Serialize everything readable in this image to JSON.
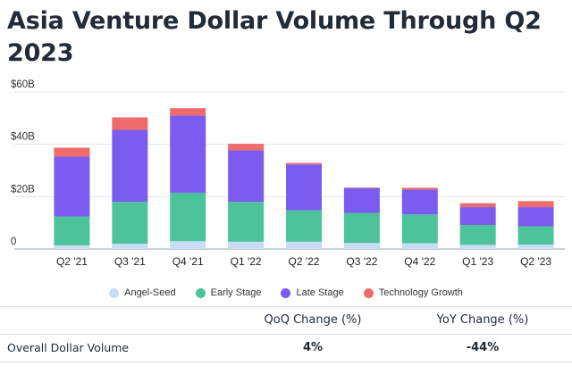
{
  "title": "Asia Venture Dollar Volume Through Q2 2023",
  "colors": {
    "angel_seed": "#c9dcf6",
    "early_stage": "#4cc39a",
    "late_stage": "#7b5cf0",
    "technology_growth": "#ef6b6b"
  },
  "chart_data": {
    "type": "bar",
    "stacked": true,
    "title": "Asia Venture Dollar Volume Through Q2 2023",
    "xlabel": "",
    "ylabel": "",
    "ylim": [
      0,
      60
    ],
    "yticks": [
      0,
      20,
      40,
      60
    ],
    "ytick_labels": [
      "0",
      "$20B",
      "$40B",
      "$60B"
    ],
    "grid": true,
    "legend": "bottom",
    "categories": [
      "Q2 '21",
      "Q3 '21",
      "Q4 '21",
      "Q1 '22",
      "Q2 '22",
      "Q3 '22",
      "Q4 '22",
      "Q1 '23",
      "Q2 '23"
    ],
    "series": [
      {
        "name": "Angel-Seed",
        "values": [
          1.4,
          2.0,
          3.0,
          2.8,
          2.8,
          2.3,
          2.2,
          1.6,
          1.7
        ]
      },
      {
        "name": "Early Stage",
        "values": [
          11.0,
          16.0,
          18.5,
          15.2,
          12.0,
          11.5,
          11.0,
          7.6,
          7.0
        ]
      },
      {
        "name": "Late Stage",
        "values": [
          22.9,
          27.5,
          29.5,
          19.7,
          17.5,
          9.5,
          9.5,
          6.8,
          7.3
        ]
      },
      {
        "name": "Technology Growth",
        "values": [
          3.4,
          4.8,
          2.8,
          2.5,
          0.6,
          0.2,
          0.7,
          1.5,
          2.3
        ]
      }
    ]
  },
  "table": {
    "headers": [
      "",
      "QoQ Change (%)",
      "YoY Change (%)"
    ],
    "rows": [
      {
        "label": "Overall Dollar Volume",
        "qoq": "4%",
        "yoy": "-44%"
      }
    ]
  }
}
